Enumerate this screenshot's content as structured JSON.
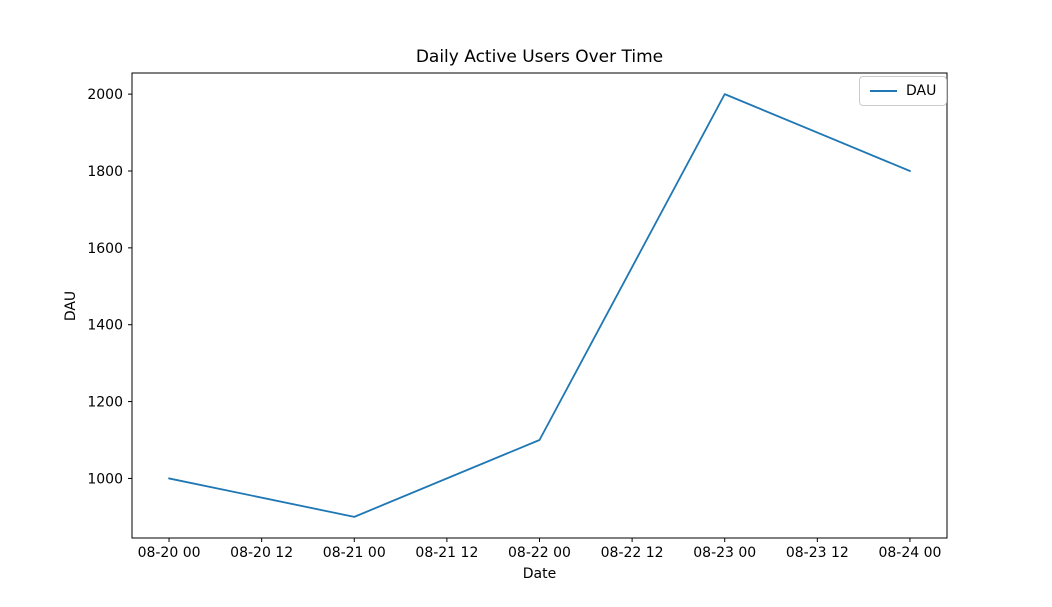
{
  "figure": {
    "title": "Daily Active Users Over Time",
    "xlabel": "Date",
    "ylabel": "DAU"
  },
  "legend": {
    "position": "upper right",
    "entries": [
      {
        "label": "DAU",
        "color": "#1f77b4"
      }
    ]
  },
  "chart_data": {
    "type": "line",
    "title": "Daily Active Users Over Time",
    "xlabel": "Date",
    "ylabel": "DAU",
    "grid": false,
    "background_color": "#ffffff",
    "axis_color": "#000000",
    "x_tick_labels": [
      "08-20 00",
      "08-20 12",
      "08-21 00",
      "08-21 12",
      "08-22 00",
      "08-22 12",
      "08-23 00",
      "08-23 12",
      "08-24 00"
    ],
    "x_tick_hours": [
      0,
      12,
      24,
      36,
      48,
      60,
      72,
      84,
      96
    ],
    "y_ticks": [
      1000,
      1200,
      1400,
      1600,
      1800,
      2000
    ],
    "xlim_hours": [
      -4.8,
      100.8
    ],
    "ylim": [
      845,
      2055
    ],
    "legend_position": "upper right",
    "series": [
      {
        "name": "DAU",
        "color": "#1f77b4",
        "line_width": 1.8,
        "points": [
          {
            "x_label": "08-20 00",
            "x_hours": 0,
            "y": 1000
          },
          {
            "x_label": "08-21 00",
            "x_hours": 24,
            "y": 900
          },
          {
            "x_label": "08-22 00",
            "x_hours": 48,
            "y": 1100
          },
          {
            "x_label": "08-23 00",
            "x_hours": 72,
            "y": 2000
          },
          {
            "x_label": "08-24 00",
            "x_hours": 96,
            "y": 1800
          }
        ]
      }
    ]
  }
}
